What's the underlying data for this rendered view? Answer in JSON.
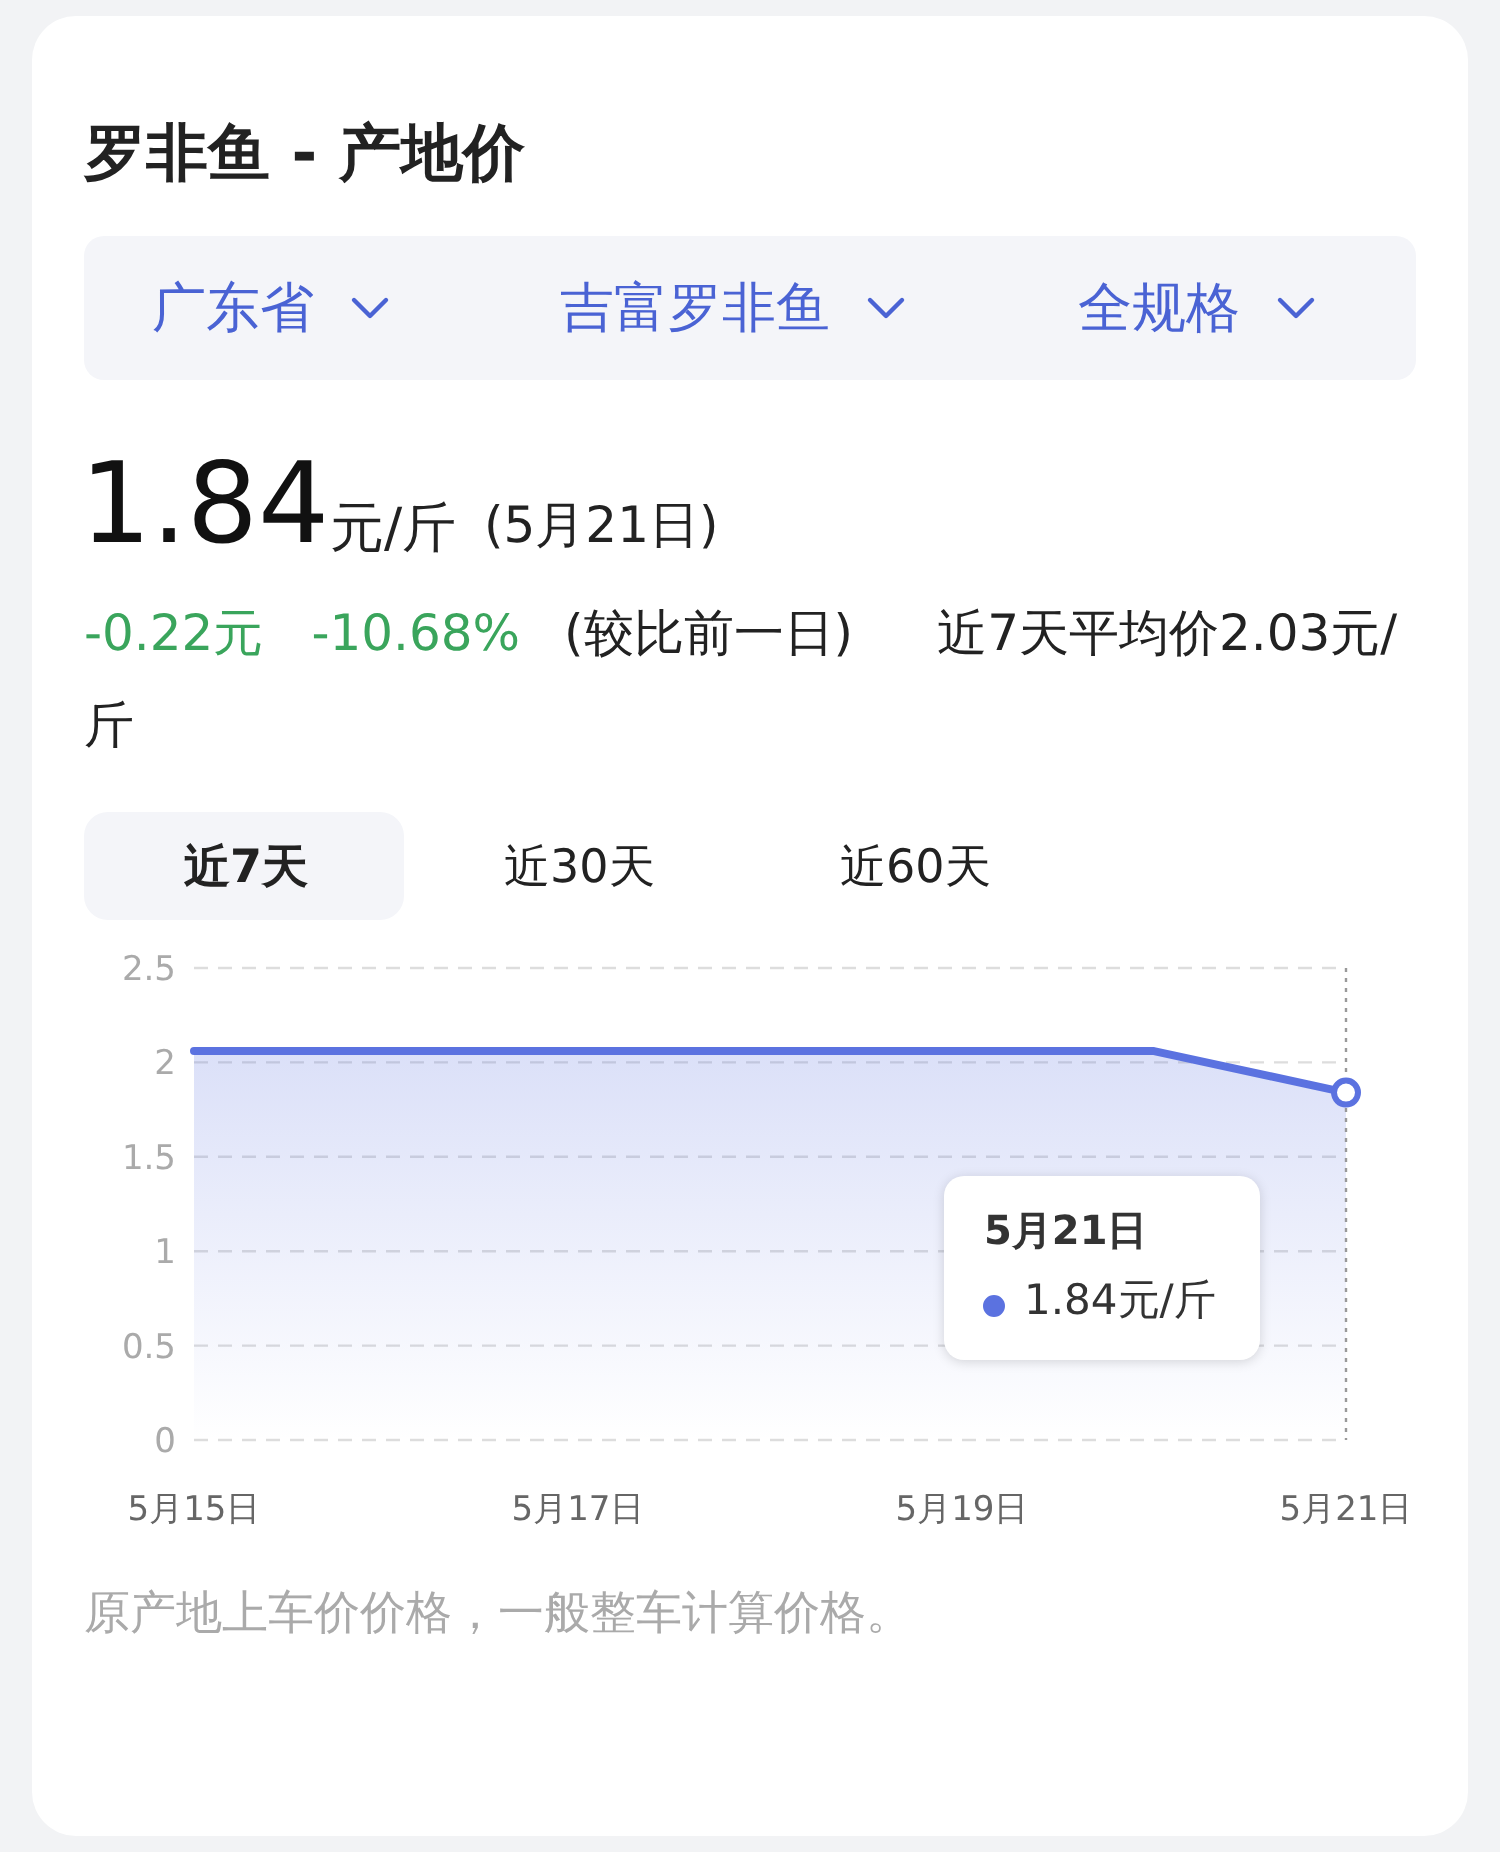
{
  "chart_data": {
    "type": "area",
    "title": "罗非鱼 - 产地价",
    "categories": [
      "5月15日",
      null,
      "5月17日",
      null,
      "5月19日",
      null,
      "5月21日"
    ],
    "series": [
      {
        "color": "#5b72e0",
        "values": [
          2.06,
          2.06,
          2.06,
          2.06,
          2.06,
          2.06,
          1.84
        ]
      }
    ],
    "ylim": [
      0,
      2.5
    ],
    "yticks": [
      0,
      0.5,
      1,
      1.5,
      2,
      2.5
    ],
    "grid": "y",
    "line_style": "solid",
    "annotations": [
      "广东省",
      "吉富罗非鱼",
      "全规格",
      "1.84",
      "元/斤",
      "(5月21日)",
      "-0.22元",
      "-10.68%",
      "(较比前一日)",
      "近7天平均价2.03元/斤",
      "近7天",
      "近30天",
      "近60天",
      "原产地上车价价格，一般整车计算价格。",
      "5月21日",
      "1.84元/斤"
    ]
  }
}
